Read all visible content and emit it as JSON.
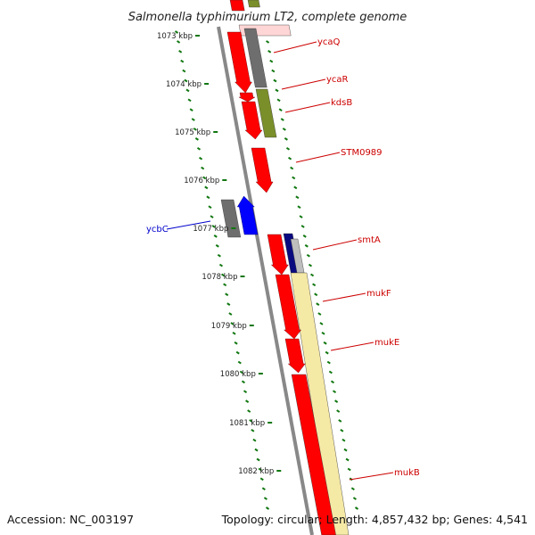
{
  "title": "Salmonella typhimurium LT2, complete genome",
  "accession": "Accession: NC_003197",
  "summary": "Topology: circular; Length: 4,857,432 bp; Genes: 4,541",
  "kbp_labels": [
    "1073 kbp",
    "1074 kbp",
    "1075 kbp",
    "1076 kbp",
    "1077 kbp",
    "1078 kbp",
    "1079 kbp",
    "1080 kbp",
    "1081 kbp",
    "1082 kbp"
  ],
  "colors": {
    "forward_gene": "#ff0000",
    "reverse_gene": "#0000ff",
    "gene_label_red": "#cc0000",
    "gene_label_blue": "#0000cc",
    "ruler_tick": "#117711",
    "backbone": "#888888",
    "gray_feature": "#6e6e6e",
    "olive_feature": "#7a8f2a",
    "navy_feature": "#0a0a80",
    "yellow_feature": "#f5e9a6"
  },
  "genes": [
    {
      "name": "ycaQ",
      "strand": "forward",
      "color": "red"
    },
    {
      "name": "ycaR",
      "strand": "forward",
      "color": "red"
    },
    {
      "name": "kdsB",
      "strand": "forward",
      "color": "red"
    },
    {
      "name": "STM0989",
      "strand": "forward",
      "color": "red"
    },
    {
      "name": "ycbC",
      "strand": "reverse",
      "color": "blue"
    },
    {
      "name": "smtA",
      "strand": "forward",
      "color": "red"
    },
    {
      "name": "mukF",
      "strand": "forward",
      "color": "red"
    },
    {
      "name": "mukE",
      "strand": "forward",
      "color": "red"
    },
    {
      "name": "mukB",
      "strand": "forward",
      "color": "red"
    }
  ]
}
